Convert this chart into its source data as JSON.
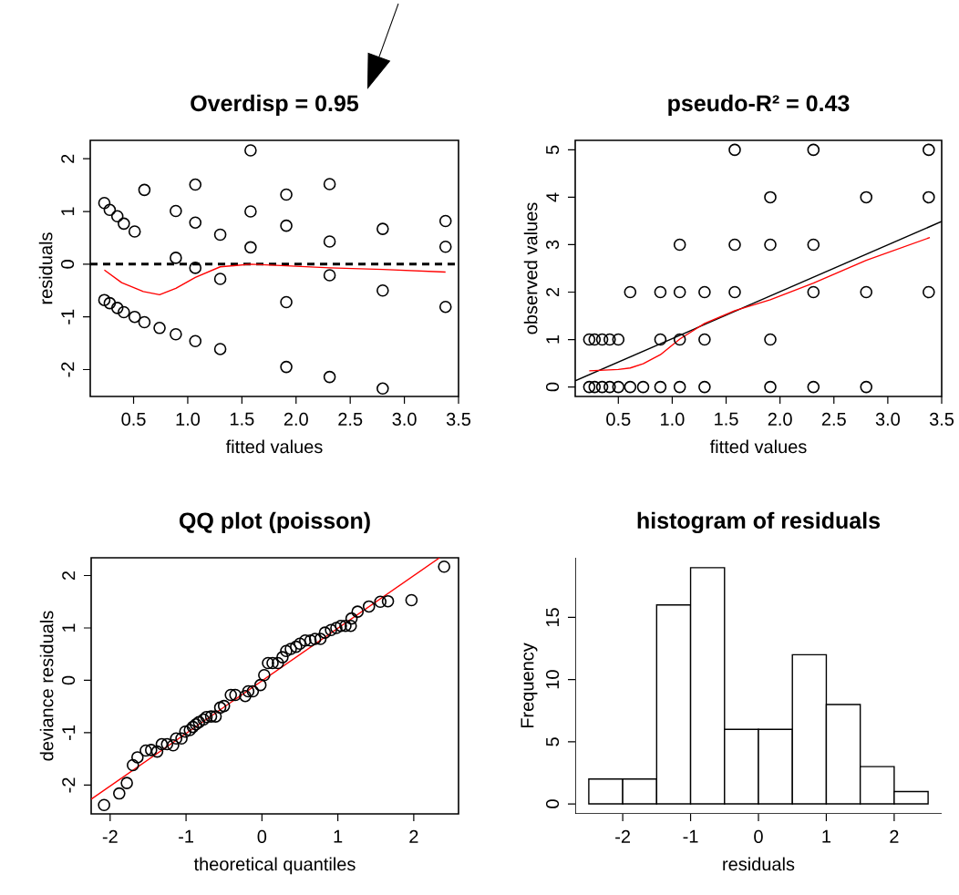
{
  "chart_data": [
    {
      "type": "scatter",
      "title": "Overdisp = 0.95",
      "xlabel": "fitted values",
      "ylabel": "residuals",
      "xlim": [
        0.1,
        3.5
      ],
      "ylim": [
        -2.51,
        2.35
      ],
      "xticks": [
        0.5,
        {
          "value": 1,
          "label": "1.0"
        },
        1.5,
        {
          "value": 2,
          "label": "2.0"
        },
        2.5,
        {
          "value": 3,
          "label": "3.0"
        },
        3.5
      ],
      "yticks": [
        -2,
        -1,
        0,
        1,
        2
      ],
      "ref_lines": [
        {
          "axis": "y",
          "value": 0,
          "color": "#000000",
          "line_style": "dashed"
        }
      ],
      "series": [
        {
          "type": "scatter",
          "color": "#000000",
          "marker": "circle",
          "x": [
            0.23,
            0.28,
            0.35,
            0.41,
            0.51,
            0.6,
            0.89,
            0.89,
            1.07,
            1.07,
            1.07,
            1.3,
            1.3,
            1.58,
            1.58,
            1.58,
            1.91,
            1.91,
            1.91,
            1.91,
            2.31,
            2.31,
            2.31,
            2.31,
            2.8,
            2.8,
            2.8,
            3.38,
            3.38,
            3.38,
            0.23,
            0.28,
            0.35,
            0.41,
            0.51,
            0.6,
            0.74,
            0.89,
            1.07,
            1.3
          ],
          "values": [
            1.16,
            1.03,
            0.91,
            0.77,
            0.62,
            1.41,
            1.01,
            0.12,
            1.51,
            0.79,
            -0.07,
            0.56,
            -0.28,
            2.16,
            1.0,
            0.32,
            1.32,
            0.73,
            -0.72,
            -1.95,
            1.52,
            0.43,
            -0.21,
            -2.14,
            0.67,
            -0.5,
            -2.36,
            0.82,
            0.33,
            -0.81,
            -0.68,
            -0.74,
            -0.83,
            -0.91,
            -1.0,
            -1.1,
            -1.21,
            -1.33,
            -1.46,
            -1.61
          ]
        },
        {
          "type": "line",
          "color": "#ff0000",
          "line_style": "solid",
          "x": [
            0.23,
            0.39,
            0.59,
            0.74,
            0.89,
            1.07,
            1.3,
            1.58,
            1.91,
            2.31,
            2.8,
            3.38
          ],
          "values": [
            -0.11,
            -0.35,
            -0.52,
            -0.58,
            -0.46,
            -0.25,
            -0.05,
            0.0,
            -0.03,
            -0.07,
            -0.1,
            -0.15
          ]
        }
      ]
    },
    {
      "type": "scatter",
      "title": "pseudo-R² = 0.43",
      "xlabel": "fitted values",
      "ylabel": "observed values",
      "xlim": [
        0.1,
        3.5
      ],
      "ylim": [
        -0.2,
        5.2
      ],
      "xticks": [
        0.5,
        {
          "value": 1,
          "label": "1.0"
        },
        1.5,
        {
          "value": 2,
          "label": "2.0"
        },
        2.5,
        {
          "value": 3,
          "label": "3.0"
        },
        3.5
      ],
      "yticks": [
        0,
        1,
        2,
        3,
        4,
        5
      ],
      "series": [
        {
          "type": "scatter",
          "color": "#000000",
          "marker": "circle",
          "x": [
            0.23,
            0.28,
            0.35,
            0.42,
            0.5,
            0.61,
            0.73,
            0.89,
            1.07,
            1.3,
            1.91,
            2.31,
            2.8,
            0.23,
            0.28,
            0.35,
            0.42,
            0.5,
            0.89,
            1.07,
            1.3,
            1.91,
            0.61,
            0.89,
            1.07,
            1.3,
            1.58,
            2.31,
            2.8,
            3.38,
            1.07,
            1.58,
            1.91,
            2.31,
            1.91,
            2.8,
            3.38,
            1.58,
            2.31,
            3.38
          ],
          "values": [
            0,
            0,
            0,
            0,
            0,
            0,
            0,
            0,
            0,
            0,
            0,
            0,
            0,
            1,
            1,
            1,
            1,
            1,
            1,
            1,
            1,
            1,
            2,
            2,
            2,
            2,
            2,
            2,
            2,
            2,
            3,
            3,
            3,
            3,
            4,
            4,
            4,
            5,
            5,
            5
          ]
        },
        {
          "type": "line",
          "color": "#000000",
          "line_style": "solid",
          "x": [
            0.1,
            3.5
          ],
          "values": [
            0.13,
            3.49
          ]
        },
        {
          "type": "line",
          "color": "#ff0000",
          "line_style": "solid",
          "x": [
            0.23,
            0.5,
            0.61,
            0.73,
            0.89,
            1.07,
            1.3,
            1.58,
            1.91,
            2.31,
            2.8,
            3.39
          ],
          "values": [
            0.34,
            0.37,
            0.4,
            0.49,
            0.68,
            1.01,
            1.34,
            1.61,
            1.84,
            2.19,
            2.67,
            3.15
          ]
        }
      ]
    },
    {
      "type": "scatter",
      "title": "QQ plot (poisson)",
      "xlabel": "theoretical quantiles",
      "ylabel": "deviance residuals",
      "xlim": [
        -2.25,
        2.59
      ],
      "ylim": [
        -2.55,
        2.34
      ],
      "xticks": [
        -2,
        -1,
        0,
        1,
        2
      ],
      "yticks": [
        -2,
        -1,
        0,
        1,
        2
      ],
      "series": [
        {
          "type": "scatter",
          "color": "#000000",
          "marker": "circle",
          "x": [
            -2.08,
            -1.88,
            -1.78,
            -1.7,
            -1.64,
            -1.53,
            -1.46,
            -1.38,
            -1.32,
            -1.25,
            -1.17,
            -1.13,
            -1.06,
            -1.01,
            -0.95,
            -0.91,
            -0.87,
            -0.83,
            -0.77,
            -0.73,
            -0.67,
            -0.61,
            -0.55,
            -0.5,
            -0.41,
            -0.35,
            -0.22,
            -0.18,
            -0.12,
            -0.02,
            0.03,
            0.08,
            0.14,
            0.21,
            0.27,
            0.32,
            0.38,
            0.45,
            0.5,
            0.57,
            0.64,
            0.7,
            0.77,
            0.83,
            0.91,
            0.98,
            1.04,
            1.1,
            1.17,
            1.18,
            1.26,
            1.41,
            1.56,
            1.66,
            1.97,
            2.4
          ],
          "values": [
            -2.38,
            -2.16,
            -1.96,
            -1.62,
            -1.47,
            -1.34,
            -1.33,
            -1.36,
            -1.22,
            -1.22,
            -1.24,
            -1.11,
            -1.11,
            -0.98,
            -0.95,
            -0.89,
            -0.84,
            -0.8,
            -0.75,
            -0.7,
            -0.69,
            -0.69,
            -0.52,
            -0.49,
            -0.28,
            -0.28,
            -0.3,
            -0.21,
            -0.21,
            -0.09,
            0.1,
            0.33,
            0.33,
            0.33,
            0.44,
            0.56,
            0.6,
            0.64,
            0.7,
            0.76,
            0.76,
            0.79,
            0.79,
            0.91,
            0.96,
            1.0,
            1.04,
            1.04,
            1.04,
            1.18,
            1.31,
            1.41,
            1.5,
            1.51,
            1.53,
            2.17
          ]
        },
        {
          "type": "line",
          "color": "#ff0000",
          "line_style": "solid",
          "x": [
            -2.25,
            2.34
          ],
          "values": [
            -2.27,
            2.34
          ]
        }
      ]
    },
    {
      "type": "histogram",
      "title": "histogram of residuals",
      "xlabel": "residuals",
      "ylabel": "Frequency",
      "xlim": [
        -2.7,
        2.7
      ],
      "ylim": [
        -0.8,
        19.8
      ],
      "xticks": [
        -2,
        -1,
        0,
        1,
        2
      ],
      "yticks": [
        0,
        5,
        10,
        15
      ],
      "bins": [
        -2.5,
        -2.0,
        -1.5,
        -1.0,
        -0.5,
        0.0,
        0.5,
        1.0,
        1.5,
        2.0,
        2.5
      ],
      "values": [
        2,
        2,
        16,
        19,
        6,
        6,
        12,
        8,
        3,
        1
      ]
    }
  ]
}
